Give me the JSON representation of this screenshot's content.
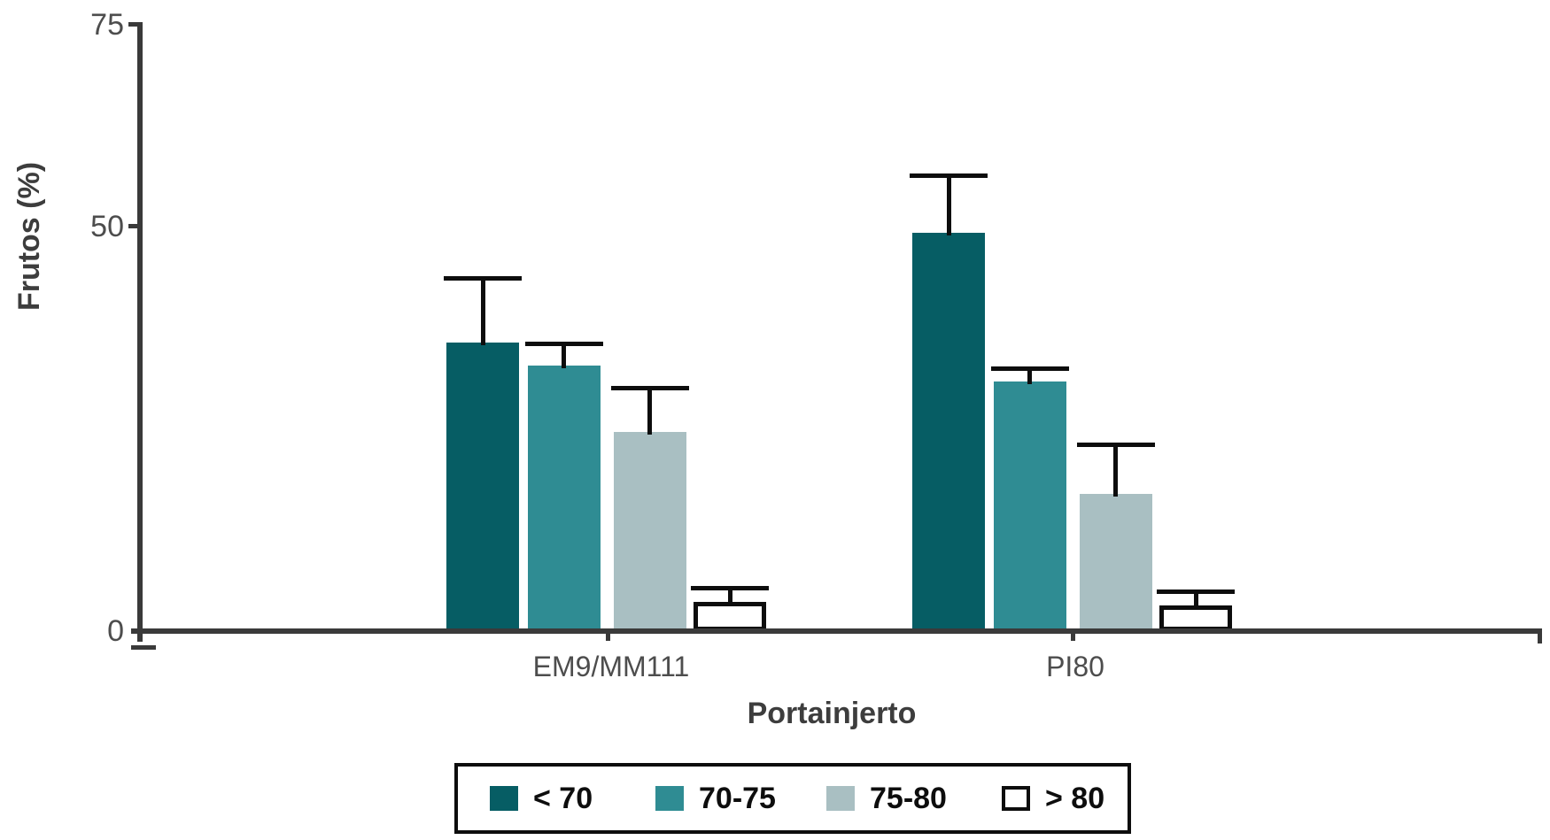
{
  "axis": {
    "y_title": "Frutos (%)",
    "x_title": "Portainjerto",
    "y_tick_labels": [
      "75",
      "50",
      "0"
    ],
    "colors": {
      "axis_line": "#3a3a3a",
      "tick_label": "#4d4d4d",
      "title": "#3d3d3d",
      "error_bar": "#0d0d0d"
    }
  },
  "legend": {
    "border_color": "#0d0d0d",
    "items": [
      {
        "label": "< 70",
        "color": "#065d64",
        "outlined": false
      },
      {
        "label": "70-75",
        "color": "#2f8c93",
        "outlined": false
      },
      {
        "label": "75-80",
        "color": "#a9bfc2",
        "outlined": false
      },
      {
        "label": "> 80",
        "color": "#ffffff",
        "outlined": true
      }
    ]
  },
  "chart_data": {
    "type": "bar",
    "title": "",
    "xlabel": "Portainjerto",
    "ylabel": "Frutos (%)",
    "categories": [
      "EM9/MM111",
      "PI80"
    ],
    "series": [
      {
        "name": "< 70",
        "color": "#065d64",
        "outlined": false,
        "values": [
          35.7,
          49.2
        ],
        "errors_plus": [
          7.9,
          7.1
        ]
      },
      {
        "name": "70-75",
        "color": "#2f8c93",
        "outlined": false,
        "values": [
          32.8,
          30.8
        ],
        "errors_plus": [
          2.7,
          1.6
        ]
      },
      {
        "name": "75-80",
        "color": "#a9bfc2",
        "outlined": false,
        "values": [
          24.6,
          17.0
        ],
        "errors_plus": [
          5.4,
          6.0
        ]
      },
      {
        "name": "> 80",
        "color": "#ffffff",
        "outlined": true,
        "values": [
          3.6,
          3.2
        ],
        "errors_plus": [
          1.7,
          1.7
        ]
      }
    ],
    "error_bars": "upper-only-with-caps",
    "ylim": [
      0,
      75
    ],
    "yticks_labeled": [
      75,
      50,
      0
    ],
    "grid": false,
    "legend_position": "bottom-center"
  }
}
